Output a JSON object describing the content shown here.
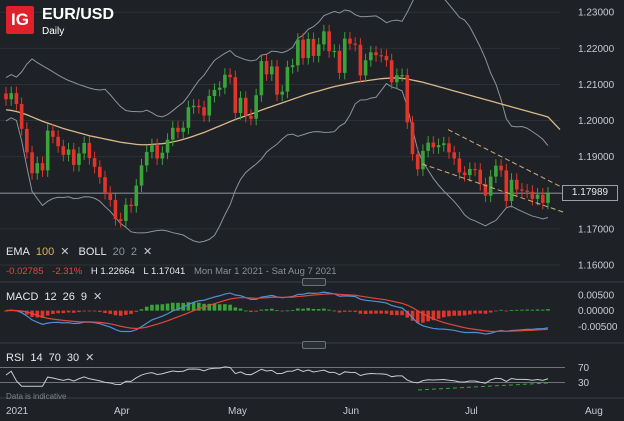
{
  "header": {
    "logo": "IG",
    "symbol": "EUR/USD",
    "timeframe": "Daily"
  },
  "indicators_main": {
    "ema_label": "EMA",
    "ema_period": "100",
    "boll_label": "BOLL",
    "boll_period": "20",
    "boll_dev": "2"
  },
  "info": {
    "change": "-0.02785",
    "change_pct": "-2.31%",
    "high": "H 1.22664",
    "low": "L 1.17041",
    "range": "Mon Mar 1 2021 - Sat Aug 7 2021"
  },
  "current_price": "1.17989",
  "price_axis": [
    "1.23000",
    "1.22000",
    "1.21000",
    "1.20000",
    "1.19000",
    "1.18000",
    "1.17000",
    "1.16000"
  ],
  "macd": {
    "label": "MACD",
    "fast": "12",
    "slow": "26",
    "signal": "9",
    "axis": [
      "0.00500",
      "0.00000",
      "-0.00500"
    ]
  },
  "rsi": {
    "label": "RSI",
    "period": "14",
    "upper": "70",
    "lower": "30",
    "axis": [
      "70",
      "30"
    ]
  },
  "disclaimer": "Data is indicative",
  "time_axis": [
    "2021",
    "Apr",
    "May",
    "Jun",
    "Jul",
    "Aug"
  ],
  "icons": {
    "close": "close-icon",
    "collapse": "collapse-handle-icon"
  },
  "colors": {
    "up": "#3aa33a",
    "down": "#e0352b",
    "ema": "#d9b98a",
    "boll": "#8d939a",
    "macd": "#4f8fd6",
    "signal": "#e0473c",
    "rsi": "#c8ccd2",
    "trend": "#c9b07a",
    "brand": "#e0202a"
  },
  "chart_data": {
    "type": "candlestick",
    "ylim": [
      1.16,
      1.232
    ],
    "x": [
      "2021-03-01",
      "2021-03-02",
      "2021-03-03",
      "2021-03-04",
      "2021-03-05",
      "2021-03-08",
      "2021-03-09",
      "2021-03-10",
      "2021-03-11",
      "2021-03-12",
      "2021-03-15",
      "2021-03-16",
      "2021-03-17",
      "2021-03-18",
      "2021-03-19",
      "2021-03-22",
      "2021-03-23",
      "2021-03-24",
      "2021-03-25",
      "2021-03-26",
      "2021-03-29",
      "2021-03-30",
      "2021-03-31",
      "2021-04-01",
      "2021-04-02",
      "2021-04-05",
      "2021-04-06",
      "2021-04-07",
      "2021-04-08",
      "2021-04-09",
      "2021-04-12",
      "2021-04-13",
      "2021-04-14",
      "2021-04-15",
      "2021-04-16",
      "2021-04-19",
      "2021-04-20",
      "2021-04-21",
      "2021-04-22",
      "2021-04-23",
      "2021-04-26",
      "2021-04-27",
      "2021-04-28",
      "2021-04-29",
      "2021-04-30",
      "2021-05-03",
      "2021-05-04",
      "2021-05-05",
      "2021-05-06",
      "2021-05-07",
      "2021-05-10",
      "2021-05-11",
      "2021-05-12",
      "2021-05-13",
      "2021-05-14",
      "2021-05-17",
      "2021-05-18",
      "2021-05-19",
      "2021-05-20",
      "2021-05-21",
      "2021-05-24",
      "2021-05-25",
      "2021-05-26",
      "2021-05-27",
      "2021-05-28",
      "2021-05-31",
      "2021-06-01",
      "2021-06-02",
      "2021-06-03",
      "2021-06-04",
      "2021-06-07",
      "2021-06-08",
      "2021-06-09",
      "2021-06-10",
      "2021-06-11",
      "2021-06-14",
      "2021-06-15",
      "2021-06-16",
      "2021-06-17",
      "2021-06-18",
      "2021-06-21",
      "2021-06-22",
      "2021-06-23",
      "2021-06-24",
      "2021-06-25",
      "2021-06-28",
      "2021-06-29",
      "2021-06-30",
      "2021-07-01",
      "2021-07-02",
      "2021-07-05",
      "2021-07-06",
      "2021-07-07",
      "2021-07-08",
      "2021-07-09",
      "2021-07-12",
      "2021-07-13",
      "2021-07-14",
      "2021-07-15",
      "2021-07-16",
      "2021-07-19",
      "2021-07-20",
      "2021-07-21",
      "2021-07-22",
      "2021-07-23"
    ],
    "close": [
      1.2059,
      1.2076,
      1.2046,
      1.1977,
      1.1912,
      1.1854,
      1.1882,
      1.1862,
      1.1972,
      1.1955,
      1.1929,
      1.1905,
      1.192,
      1.1877,
      1.1909,
      1.1938,
      1.1896,
      1.1872,
      1.1843,
      1.18,
      1.178,
      1.1727,
      1.1722,
      1.1767,
      1.1763,
      1.182,
      1.1876,
      1.1913,
      1.1932,
      1.1895,
      1.1911,
      1.1947,
      1.198,
      1.1969,
      1.198,
      1.2037,
      1.2041,
      1.2037,
      1.2014,
      1.2068,
      1.2085,
      1.2091,
      1.2127,
      1.212,
      1.2021,
      1.2063,
      1.2013,
      1.2005,
      1.207,
      1.2165,
      1.2128,
      1.215,
      1.2072,
      1.208,
      1.2148,
      1.2153,
      1.2224,
      1.2173,
      1.2226,
      1.2179,
      1.2211,
      1.2247,
      1.2192,
      1.2193,
      1.2132,
      1.2227,
      1.2213,
      1.221,
      1.2125,
      1.2167,
      1.2189,
      1.2181,
      1.2179,
      1.2167,
      1.2106,
      1.2126,
      1.2126,
      1.1995,
      1.1907,
      1.1865,
      1.1916,
      1.1939,
      1.1926,
      1.1932,
      1.1937,
      1.1912,
      1.1895,
      1.1856,
      1.1849,
      1.1866,
      1.1864,
      1.1824,
      1.1792,
      1.1845,
      1.1875,
      1.1862,
      1.1777,
      1.1836,
      1.1809,
      1.1806,
      1.1803,
      1.1783,
      1.1795,
      1.1772,
      1.1798
    ],
    "ema100": [
      1.203,
      1.2028,
      1.2025,
      1.2021,
      1.2016,
      1.201,
      1.2004,
      1.1998,
      1.1993,
      1.1988,
      1.1983,
      1.1978,
      1.1974,
      1.197,
      1.1966,
      1.1962,
      1.1958,
      1.1955,
      1.1952,
      1.1949,
      1.1946,
      1.1943,
      1.194,
      1.1938,
      1.1936,
      1.1934,
      1.1933,
      1.1933,
      1.1934,
      1.1935,
      1.1936,
      1.1938,
      1.1941,
      1.1944,
      1.1948,
      1.1952,
      1.1957,
      1.1962,
      1.1967,
      1.1973,
      1.1979,
      1.1985,
      1.1991,
      1.1997,
      1.2003,
      1.2008,
      1.2013,
      1.2018,
      1.2023,
      1.2029,
      1.2034,
      1.2039,
      1.2044,
      1.2049,
      1.2054,
      1.2059,
      1.2064,
      1.2069,
      1.2074,
      1.2078,
      1.2082,
      1.2086,
      1.209,
      1.2094,
      1.2097,
      1.21,
      1.2103,
      1.2106,
      1.2108,
      1.211,
      1.2112,
      1.2114,
      1.2116,
      1.2117,
      1.2118,
      1.2118,
      1.2117,
      1.2115,
      1.2112,
      1.2109,
      1.2106,
      1.2102,
      1.2098,
      1.2094,
      1.209,
      1.2086,
      1.2082,
      1.2078,
      1.2074,
      1.207,
      1.2066,
      1.2062,
      1.2058,
      1.2054,
      1.205,
      1.2046,
      1.2042,
      1.2038,
      1.2034,
      1.203,
      1.2026,
      1.2022,
      1.2018,
      1.2014,
      1.201
    ]
  }
}
